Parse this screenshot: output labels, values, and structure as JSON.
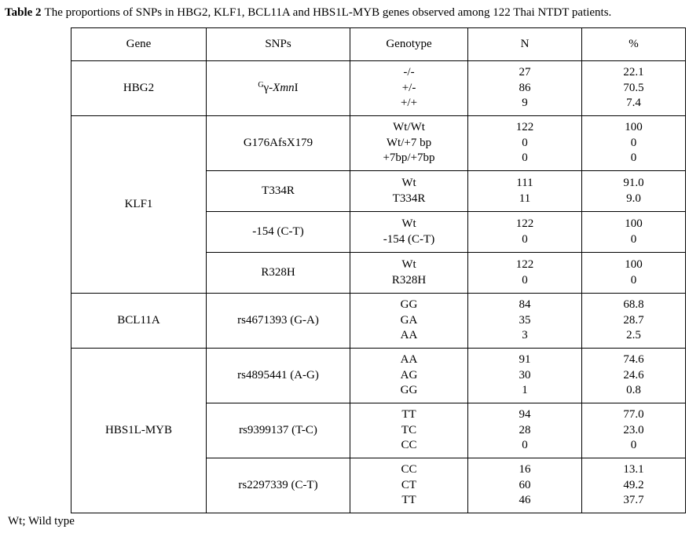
{
  "caption": {
    "label": "Table 2",
    "text": "The proportions of SNPs in HBG2, KLF1, BCL11A and HBS1L-MYB genes observed among 122 Thai NTDT patients."
  },
  "table": {
    "headers": [
      "Gene",
      "SNPs",
      "Genotype",
      "N",
      "%"
    ],
    "groups": [
      {
        "gene": "HBG2",
        "snps": [
          {
            "name": [
              {
                "text": "G",
                "style": "sup"
              },
              {
                "text": "γ-"
              },
              {
                "text": "Xmn",
                "style": "italic"
              },
              {
                "text": "I"
              }
            ],
            "genotypes": [
              "-/-",
              "+/-",
              "+/+"
            ],
            "n": [
              "27",
              "86",
              "9"
            ],
            "percent": [
              "22.1",
              "70.5",
              "7.4"
            ]
          }
        ]
      },
      {
        "gene": "KLF1",
        "snps": [
          {
            "name": "G176AfsX179",
            "genotypes": [
              "Wt/Wt",
              "Wt/+7 bp",
              "+7bp/+7bp"
            ],
            "n": [
              "122",
              "0",
              "0"
            ],
            "percent": [
              "100",
              "0",
              "0"
            ]
          },
          {
            "name": "T334R",
            "genotypes": [
              "Wt",
              "T334R"
            ],
            "n": [
              "111",
              "11"
            ],
            "percent": [
              "91.0",
              "9.0"
            ]
          },
          {
            "name": "-154 (C-T)",
            "genotypes": [
              "Wt",
              "-154 (C-T)"
            ],
            "n": [
              "122",
              "0"
            ],
            "percent": [
              "100",
              "0"
            ]
          },
          {
            "name": "R328H",
            "genotypes": [
              "Wt",
              "R328H"
            ],
            "n": [
              "122",
              "0"
            ],
            "percent": [
              "100",
              "0"
            ]
          }
        ]
      },
      {
        "gene": "BCL11A",
        "snps": [
          {
            "name": "rs4671393 (G-A)",
            "genotypes": [
              "GG",
              "GA",
              "AA"
            ],
            "n": [
              "84",
              "35",
              "3"
            ],
            "percent": [
              "68.8",
              "28.7",
              "2.5"
            ]
          }
        ]
      },
      {
        "gene": "HBS1L-MYB",
        "snps": [
          {
            "name": "rs4895441 (A-G)",
            "genotypes": [
              "AA",
              "AG",
              "GG"
            ],
            "n": [
              "91",
              "30",
              "1"
            ],
            "percent": [
              "74.6",
              "24.6",
              "0.8"
            ]
          },
          {
            "name": "rs9399137 (T-C)",
            "genotypes": [
              "TT",
              "TC",
              "CC"
            ],
            "n": [
              "94",
              "28",
              "0"
            ],
            "percent": [
              "77.0",
              "23.0",
              "0"
            ]
          },
          {
            "name": "rs2297339 (C-T)",
            "genotypes": [
              "CC",
              "CT",
              "TT"
            ],
            "n": [
              "16",
              "60",
              "46"
            ],
            "percent": [
              "13.1",
              "49.2",
              "37.7"
            ]
          }
        ]
      }
    ]
  },
  "footnote": "Wt; Wild type"
}
